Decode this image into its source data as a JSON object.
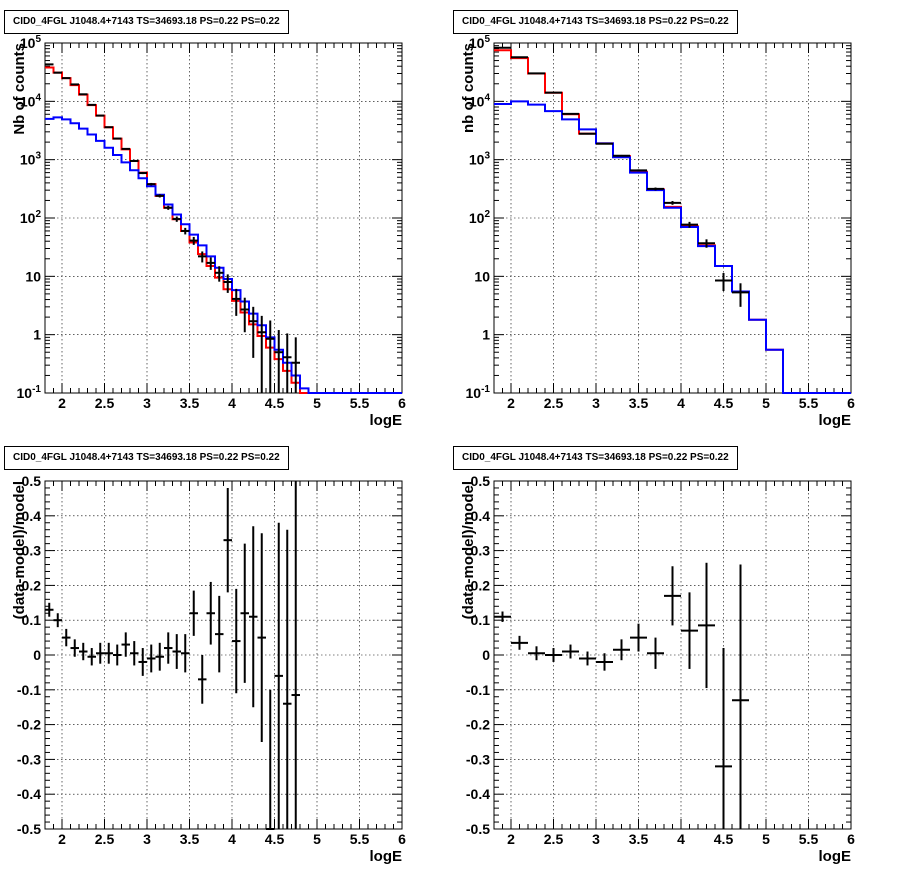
{
  "colors": {
    "data": "#000000",
    "total_model": "#ff0000",
    "source_model": "#0000ff",
    "grid": "#000000"
  },
  "chart_data": [
    {
      "type": "line",
      "title": "CID0_4FGL J1048.4+7143 TS=34693.18 PS=0.22 PS=0.22",
      "xlabel": "logE",
      "ylabel": "Nb of counts",
      "xlim": [
        1.8,
        6.0
      ],
      "ylim": [
        0.1,
        100000
      ],
      "yscale": "log",
      "grid": true,
      "x_ticks": [
        "2",
        "2.5",
        "3",
        "3.5",
        "4",
        "4.5",
        "5",
        "5.5",
        "6"
      ],
      "y_ticks": [
        "10^-1",
        "1",
        "10",
        "10^2",
        "10^3",
        "10^4",
        "10^5"
      ],
      "series": [
        {
          "name": "",
          "kind": "step",
          "color": "red",
          "bin_edges": [
            1.8,
            1.9,
            2.0,
            2.1,
            2.2,
            2.3,
            2.4,
            2.5,
            2.6,
            2.7,
            2.8,
            2.9,
            3.0,
            3.1,
            3.2,
            3.3,
            3.4,
            3.5,
            3.6,
            3.7,
            3.8,
            3.9,
            4.0,
            4.1,
            4.2,
            4.3,
            4.4,
            4.5,
            4.6,
            4.7,
            4.8,
            4.9,
            5.0,
            5.1,
            5.2,
            5.3,
            5.4,
            5.5,
            5.6,
            5.7,
            5.8,
            5.9,
            6.0
          ],
          "values": [
            38000,
            31000,
            25000,
            19000,
            13000,
            8600,
            5700,
            3600,
            2300,
            1500,
            950,
            600,
            380,
            240,
            150,
            95,
            60,
            38,
            24,
            15,
            9.5,
            6,
            3.8,
            2.4,
            1.5,
            0.95,
            0.6,
            0.38,
            0.24,
            0.15,
            0.1,
            0.1,
            0.1,
            0.1,
            0.1,
            0.1,
            0.1,
            0.1,
            0.1,
            0.1,
            0.1,
            0.1
          ]
        },
        {
          "name": "",
          "kind": "step",
          "color": "blue",
          "bin_edges": [
            1.8,
            1.9,
            2.0,
            2.1,
            2.2,
            2.3,
            2.4,
            2.5,
            2.6,
            2.7,
            2.8,
            2.9,
            3.0,
            3.1,
            3.2,
            3.3,
            3.4,
            3.5,
            3.6,
            3.7,
            3.8,
            3.9,
            4.0,
            4.1,
            4.2,
            4.3,
            4.4,
            4.5,
            4.6,
            4.7,
            4.8,
            4.9,
            5.0,
            5.1,
            5.2,
            5.3,
            5.4,
            5.5,
            5.6,
            5.7,
            5.8,
            5.9,
            6.0
          ],
          "values": [
            5000,
            5300,
            4900,
            4200,
            3400,
            2700,
            2100,
            1600,
            1200,
            900,
            660,
            480,
            350,
            250,
            170,
            115,
            78,
            52,
            34,
            22,
            14,
            9,
            5.8,
            3.7,
            2.3,
            1.45,
            0.9,
            0.55,
            0.33,
            0.2,
            0.12,
            0.1,
            0.1,
            0.1,
            0.1,
            0.1,
            0.1,
            0.1,
            0.1,
            0.1,
            0.1,
            0.1
          ]
        },
        {
          "name": "",
          "kind": "points",
          "color": "black",
          "x": [
            1.85,
            1.95,
            2.05,
            2.15,
            2.25,
            2.35,
            2.45,
            2.55,
            2.65,
            2.75,
            2.85,
            2.95,
            3.05,
            3.15,
            3.25,
            3.35,
            3.45,
            3.55,
            3.65,
            3.75,
            3.85,
            3.95,
            4.05,
            4.15,
            4.25,
            4.35,
            4.45,
            4.55,
            4.65,
            4.75
          ],
          "y": [
            43000,
            31000,
            25000,
            19500,
            13200,
            8700,
            5700,
            3600,
            2300,
            1530,
            950,
            590,
            380,
            240,
            150,
            96,
            60,
            41,
            22,
            17,
            11.5,
            8,
            4.1,
            2.7,
            1.7,
            1.1,
            0.85,
            0.5,
            0.41,
            0.33
          ],
          "yerr": [
            210,
            180,
            160,
            140,
            115,
            93,
            75,
            60,
            48,
            39,
            31,
            24,
            19,
            15,
            12,
            10,
            7.7,
            6.4,
            4.7,
            4.1,
            3.4,
            2.8,
            2,
            1.6,
            1.3,
            1,
            0.9,
            0.7,
            0.64,
            0.57
          ]
        }
      ]
    },
    {
      "type": "line",
      "title": "CID0_4FGL J1048.4+7143 TS=34693.18 PS=0.22 PS=0.22",
      "xlabel": "logE",
      "ylabel": "nb of counts",
      "xlim": [
        1.8,
        6.0
      ],
      "ylim": [
        0.1,
        100000
      ],
      "yscale": "log",
      "grid": true,
      "x_ticks": [
        "2",
        "2.5",
        "3",
        "3.5",
        "4",
        "4.5",
        "5",
        "5.5",
        "6"
      ],
      "y_ticks": [
        "10^-1",
        "1",
        "10",
        "10^2",
        "10^3",
        "10^4",
        "10^5"
      ],
      "series": [
        {
          "name": "",
          "kind": "step",
          "color": "red",
          "bin_edges": [
            1.8,
            2.0,
            2.2,
            2.4,
            2.6,
            2.8,
            3.0,
            3.2,
            3.4,
            3.6,
            3.8,
            4.0,
            4.2,
            4.4,
            4.6,
            4.8,
            5.0,
            5.2,
            5.4,
            5.6,
            5.8,
            6.0
          ],
          "values": [
            75000,
            55000,
            30000,
            14000,
            6000,
            2800,
            1900,
            1150,
            620,
            310,
            155,
            72,
            34,
            15,
            5.5,
            1.8,
            0.55,
            0.1,
            0.1,
            0.1,
            0.1
          ]
        },
        {
          "name": "",
          "kind": "step",
          "color": "blue",
          "bin_edges": [
            1.8,
            2.0,
            2.2,
            2.4,
            2.6,
            2.8,
            3.0,
            3.2,
            3.4,
            3.6,
            3.8,
            4.0,
            4.2,
            4.4,
            4.6,
            4.8,
            5.0,
            5.2,
            5.4,
            5.6,
            5.8,
            6.0
          ],
          "values": [
            9000,
            10000,
            8800,
            6800,
            4900,
            3300,
            1900,
            1100,
            600,
            300,
            150,
            70,
            33,
            15,
            5.5,
            1.8,
            0.55,
            0.1,
            0.1,
            0.1,
            0.1
          ]
        },
        {
          "name": "",
          "kind": "points",
          "color": "black",
          "x": [
            1.9,
            2.1,
            2.3,
            2.5,
            2.7,
            2.9,
            3.1,
            3.3,
            3.5,
            3.7,
            3.9,
            4.1,
            4.3,
            4.5,
            4.7
          ],
          "y": [
            83000,
            57000,
            30200,
            14100,
            6100,
            2780,
            1870,
            1170,
            655,
            315,
            182,
            77,
            37,
            8.5,
            5.3
          ],
          "yerr": [
            290,
            240,
            174,
            119,
            78,
            53,
            43,
            34,
            26,
            18,
            13.5,
            8.8,
            6.1,
            2.9,
            2.3
          ]
        }
      ]
    },
    {
      "type": "scatter",
      "title": "CID0_4FGL J1048.4+7143 TS=34693.18 PS=0.22 PS=0.22",
      "xlabel": "logE",
      "ylabel": "(data-model)/model",
      "xlim": [
        1.8,
        6.0
      ],
      "ylim": [
        -0.5,
        0.5
      ],
      "grid": true,
      "x_ticks": [
        "2",
        "2.5",
        "3",
        "3.5",
        "4",
        "4.5",
        "5",
        "5.5",
        "6"
      ],
      "y_ticks": [
        "-0.5",
        "-0.4",
        "-0.3",
        "-0.2",
        "-0.1",
        "0",
        "0.1",
        "0.2",
        "0.3",
        "0.4",
        "0.5"
      ],
      "series": [
        {
          "name": "",
          "color": "black",
          "x": [
            1.85,
            1.95,
            2.05,
            2.15,
            2.25,
            2.35,
            2.45,
            2.55,
            2.65,
            2.75,
            2.85,
            2.95,
            3.05,
            3.15,
            3.25,
            3.35,
            3.45,
            3.55,
            3.65,
            3.75,
            3.85,
            3.95,
            4.05,
            4.15,
            4.25,
            4.35,
            4.45,
            4.55,
            4.65,
            4.75
          ],
          "y": [
            0.13,
            0.1,
            0.05,
            0.02,
            0.01,
            -0.005,
            0.005,
            0.005,
            0.0,
            0.03,
            0.005,
            -0.02,
            -0.01,
            -0.005,
            0.02,
            0.01,
            0.005,
            0.12,
            -0.07,
            0.12,
            0.06,
            0.33,
            0.04,
            0.12,
            0.11,
            0.05,
            -0.5,
            -0.06,
            -0.14,
            -0.115
          ],
          "yerr": [
            0.02,
            0.02,
            0.025,
            0.025,
            0.025,
            0.025,
            0.03,
            0.03,
            0.03,
            0.035,
            0.035,
            0.04,
            0.04,
            0.04,
            0.045,
            0.05,
            0.055,
            0.065,
            0.07,
            0.09,
            0.11,
            0.15,
            0.15,
            0.2,
            0.26,
            0.3,
            0.4,
            0.44,
            0.5,
            0.62
          ]
        }
      ]
    },
    {
      "type": "scatter",
      "title": "CID0_4FGL J1048.4+7143 TS=34693.18 PS=0.22 PS=0.22",
      "xlabel": "logE",
      "ylabel": "(data-model)/model",
      "xlim": [
        1.8,
        6.0
      ],
      "ylim": [
        -0.5,
        0.5
      ],
      "grid": true,
      "x_ticks": [
        "2",
        "2.5",
        "3",
        "3.5",
        "4",
        "4.5",
        "5",
        "5.5",
        "6"
      ],
      "y_ticks": [
        "-0.5",
        "-0.4",
        "-0.3",
        "-0.2",
        "-0.1",
        "0",
        "0.1",
        "0.2",
        "0.3",
        "0.4",
        "0.5"
      ],
      "series": [
        {
          "name": "",
          "color": "black",
          "x": [
            1.9,
            2.1,
            2.3,
            2.5,
            2.7,
            2.9,
            3.1,
            3.3,
            3.5,
            3.7,
            3.9,
            4.1,
            4.3,
            4.5,
            4.7
          ],
          "y": [
            0.11,
            0.035,
            0.005,
            0.0,
            0.01,
            -0.01,
            -0.02,
            0.015,
            0.05,
            0.005,
            0.17,
            0.07,
            0.085,
            -0.32,
            -0.13
          ],
          "yerr": [
            0.015,
            0.02,
            0.02,
            0.02,
            0.02,
            0.02,
            0.025,
            0.03,
            0.04,
            0.045,
            0.085,
            0.11,
            0.18,
            0.34,
            0.39
          ]
        }
      ]
    }
  ]
}
